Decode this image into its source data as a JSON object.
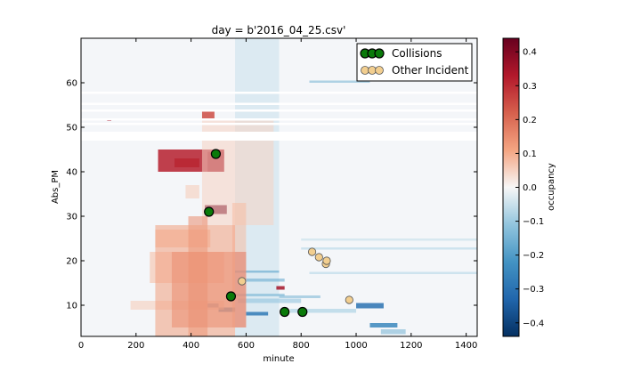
{
  "chart_data": {
    "type": "heatmap",
    "title": "day = b'2016_04_25.csv'",
    "xlabel": "minute",
    "ylabel": "Abs_PM",
    "xlim": [
      0,
      1440
    ],
    "ylim": [
      3,
      70
    ],
    "xticks": [
      0,
      200,
      400,
      600,
      800,
      1000,
      1200,
      1400
    ],
    "yticks": [
      10,
      20,
      30,
      40,
      50,
      60
    ],
    "legend_position": "top-right",
    "colorbar": {
      "label": "occupancy",
      "colormap": "RdBu_r",
      "range": [
        -0.44,
        0.44
      ],
      "ticks": [
        "0.4",
        "0.3",
        "0.2",
        "0.1",
        "0.0",
        "−0.1",
        "−0.2",
        "−0.3",
        "−0.4"
      ],
      "tick_values": [
        0.4,
        0.3,
        0.2,
        0.1,
        0.0,
        -0.1,
        -0.2,
        -0.3,
        -0.4
      ]
    },
    "blank_rows_abs_pm": [
      [
        47,
        49
      ],
      [
        50.5,
        51
      ],
      [
        51.5,
        52
      ],
      [
        53.5,
        54
      ],
      [
        55,
        55.5
      ],
      [
        57.5,
        58
      ]
    ],
    "heat_regions": [
      {
        "x": [
          270,
          560
        ],
        "y": [
          3,
          28
        ],
        "value": 0.12
      },
      {
        "x": [
          330,
          600
        ],
        "y": [
          5,
          22
        ],
        "value": 0.18
      },
      {
        "x": [
          390,
          460
        ],
        "y": [
          3,
          30
        ],
        "value": 0.15
      },
      {
        "x": [
          550,
          600
        ],
        "y": [
          5,
          33
        ],
        "value": 0.08
      },
      {
        "x": [
          440,
          700
        ],
        "y": [
          28,
          52
        ],
        "value": 0.05
      },
      {
        "x": [
          270,
          470
        ],
        "y": [
          23,
          27
        ],
        "value": 0.09
      },
      {
        "x": [
          250,
          520
        ],
        "y": [
          15,
          22
        ],
        "value": 0.08
      },
      {
        "x": [
          180,
          520
        ],
        "y": [
          9,
          11
        ],
        "value": 0.06
      },
      {
        "x": [
          280,
          520
        ],
        "y": [
          40,
          45
        ],
        "value": 0.32
      },
      {
        "x": [
          340,
          430
        ],
        "y": [
          41,
          43
        ],
        "value": 0.25
      },
      {
        "x": [
          460,
          520
        ],
        "y": [
          40,
          44.5
        ],
        "value": 0.42
      },
      {
        "x": [
          480,
          520
        ],
        "y": [
          43,
          45
        ],
        "value": 0.3
      },
      {
        "x": [
          450,
          530
        ],
        "y": [
          30.5,
          32.5
        ],
        "value": 0.43
      },
      {
        "x": [
          440,
          485
        ],
        "y": [
          52,
          54
        ],
        "value": 0.25
      },
      {
        "x": [
          95,
          110
        ],
        "y": [
          51.4,
          51.8
        ],
        "value": 0.35
      },
      {
        "x": [
          710,
          740
        ],
        "y": [
          13.5,
          14.3
        ],
        "value": 0.35
      },
      {
        "x": [
          380,
          430
        ],
        "y": [
          34,
          37
        ],
        "value": 0.06
      },
      {
        "x": [
          560,
          720
        ],
        "y": [
          17.3,
          17.8
        ],
        "value": -0.2
      },
      {
        "x": [
          600,
          740
        ],
        "y": [
          15.3,
          16
        ],
        "value": -0.18
      },
      {
        "x": [
          560,
          740
        ],
        "y": [
          12,
          12.6
        ],
        "value": -0.16
      },
      {
        "x": [
          570,
          800
        ],
        "y": [
          10.5,
          11.5
        ],
        "value": -0.12
      },
      {
        "x": [
          720,
          870
        ],
        "y": [
          11.6,
          12.2
        ],
        "value": -0.15
      },
      {
        "x": [
          600,
          680
        ],
        "y": [
          7.7,
          8.5
        ],
        "value": -0.28
      },
      {
        "x": [
          460,
          500
        ],
        "y": [
          9.5,
          10.4
        ],
        "value": -0.3
      },
      {
        "x": [
          500,
          560
        ],
        "y": [
          8.5,
          9.5
        ],
        "value": -0.25
      },
      {
        "x": [
          760,
          1000
        ],
        "y": [
          8.3,
          9.2
        ],
        "value": -0.1
      },
      {
        "x": [
          1000,
          1100
        ],
        "y": [
          9.3,
          10.5
        ],
        "value": -0.3
      },
      {
        "x": [
          1050,
          1150
        ],
        "y": [
          5,
          6
        ],
        "value": -0.25
      },
      {
        "x": [
          1090,
          1180
        ],
        "y": [
          3.5,
          4.6
        ],
        "value": -0.15
      },
      {
        "x": [
          800,
          1440
        ],
        "y": [
          22.5,
          23
        ],
        "value": -0.08
      },
      {
        "x": [
          800,
          1440
        ],
        "y": [
          24.5,
          25
        ],
        "value": -0.06
      },
      {
        "x": [
          830,
          1440
        ],
        "y": [
          17,
          17.5
        ],
        "value": -0.08
      },
      {
        "x": [
          830,
          1050
        ],
        "y": [
          60,
          60.5
        ],
        "value": -0.15
      },
      {
        "x": [
          560,
          720
        ],
        "y": [
          3,
          70
        ],
        "value": -0.05
      },
      {
        "x": [
          0,
          1440
        ],
        "y": [
          3,
          70
        ],
        "value": -0.01
      }
    ],
    "series": [
      {
        "name": "Collisions",
        "color": "#0a7a0a",
        "points": [
          [
            490,
            44
          ],
          [
            465,
            31
          ],
          [
            545,
            12
          ],
          [
            740,
            8.5
          ],
          [
            805,
            8.5
          ]
        ]
      },
      {
        "name": "Other Incident",
        "color": "#f2ce8f",
        "points": [
          [
            840,
            22
          ],
          [
            865,
            20.8
          ],
          [
            890,
            19.3
          ],
          [
            893,
            20
          ],
          [
            585,
            15.4
          ],
          [
            975,
            11.2
          ]
        ]
      }
    ]
  }
}
